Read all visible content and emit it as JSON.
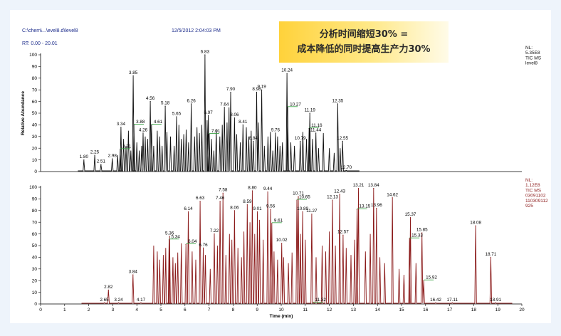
{
  "header": {
    "file_path": "C:\\chem\\...\\evel8.d\\level8",
    "datetime": "12/5/2012 2:04:03 PM",
    "rt_range": "RT: 0.00 - 20.01"
  },
  "banner": {
    "line1": "分析时间缩短30% =",
    "line2": "成本降低的同时提高生产力30%"
  },
  "colors": {
    "top_trace": "#111111",
    "bottom_trace": "#8b1a1a",
    "annotation_line": "#2e9e3a",
    "header_text": "#1a2a8a",
    "banner": "#ffd23a"
  },
  "chart_data": [
    {
      "type": "line",
      "id": "top",
      "ylabel": "Relative Abundance",
      "xlim": [
        0,
        20
      ],
      "ylim": [
        0,
        100
      ],
      "yticks": [
        "0",
        "10",
        "20",
        "30",
        "40",
        "50",
        "60",
        "70",
        "80",
        "90",
        "100"
      ],
      "info": [
        "NL:",
        "5.35E8",
        "TIC MS",
        "level8"
      ],
      "trace_start": 1.55,
      "trace_end": 13.25,
      "peaks": [
        {
          "x": 1.8,
          "y": 10,
          "label": "1.80"
        },
        {
          "x": 2.25,
          "y": 14,
          "label": "2.25"
        },
        {
          "x": 2.51,
          "y": 6,
          "label": "2.51"
        },
        {
          "x": 2.98,
          "y": 11,
          "label": "2.98"
        },
        {
          "x": 3.31,
          "y": 19,
          "label": "3.31"
        },
        {
          "x": 3.34,
          "y": 38,
          "label": "3.34"
        },
        {
          "x": 3.85,
          "y": 82,
          "label": "3.85"
        },
        {
          "x": 3.88,
          "y": 40,
          "label": "3.88"
        },
        {
          "x": 4.26,
          "y": 33,
          "label": "4.26"
        },
        {
          "x": 4.56,
          "y": 60,
          "label": "4.56"
        },
        {
          "x": 4.61,
          "y": 40,
          "label": "4.61"
        },
        {
          "x": 5.18,
          "y": 56,
          "label": "5.18"
        },
        {
          "x": 5.65,
          "y": 47,
          "label": "5.65"
        },
        {
          "x": 6.26,
          "y": 58,
          "label": "6.26"
        },
        {
          "x": 6.83,
          "y": 100,
          "label": "6.83"
        },
        {
          "x": 6.97,
          "y": 48,
          "label": "6.97"
        },
        {
          "x": 7.01,
          "y": 32,
          "label": "7.01"
        },
        {
          "x": 7.64,
          "y": 55,
          "label": "7.64"
        },
        {
          "x": 7.9,
          "y": 68,
          "label": "7.90"
        },
        {
          "x": 8.06,
          "y": 46,
          "label": "8.06"
        },
        {
          "x": 8.41,
          "y": 40,
          "label": "8.41"
        },
        {
          "x": 8.84,
          "y": 26,
          "label": "8.84"
        },
        {
          "x": 8.98,
          "y": 68,
          "label": "8.98"
        },
        {
          "x": 9.19,
          "y": 70,
          "label": "9.19"
        },
        {
          "x": 9.76,
          "y": 33,
          "label": "9.76"
        },
        {
          "x": 10.24,
          "y": 84,
          "label": "10.24"
        },
        {
          "x": 10.27,
          "y": 55,
          "label": "10.27"
        },
        {
          "x": 10.79,
          "y": 26,
          "label": "10.79"
        },
        {
          "x": 11.16,
          "y": 37,
          "label": "11.16"
        },
        {
          "x": 11.19,
          "y": 50,
          "label": "11.19"
        },
        {
          "x": 11.44,
          "y": 33,
          "label": "11.44"
        },
        {
          "x": 12.35,
          "y": 58,
          "label": "12.35"
        },
        {
          "x": 12.55,
          "y": 26,
          "label": "12.55"
        },
        {
          "x": 12.7,
          "y": 1,
          "label": "12.70"
        }
      ],
      "minor_peaks": [
        [
          3.2,
          14
        ],
        [
          3.45,
          28
        ],
        [
          3.55,
          22
        ],
        [
          3.65,
          35
        ],
        [
          3.75,
          18
        ],
        [
          4.0,
          25
        ],
        [
          4.1,
          18
        ],
        [
          4.2,
          22
        ],
        [
          4.35,
          30
        ],
        [
          4.45,
          28
        ],
        [
          4.7,
          22
        ],
        [
          4.85,
          35
        ],
        [
          4.95,
          30
        ],
        [
          5.05,
          22
        ],
        [
          5.25,
          34
        ],
        [
          5.4,
          30
        ],
        [
          5.55,
          22
        ],
        [
          5.75,
          40
        ],
        [
          5.85,
          28
        ],
        [
          5.95,
          32
        ],
        [
          6.05,
          36
        ],
        [
          6.15,
          25
        ],
        [
          6.4,
          30
        ],
        [
          6.5,
          38
        ],
        [
          6.6,
          33
        ],
        [
          6.7,
          40
        ],
        [
          6.92,
          44
        ],
        [
          7.1,
          28
        ],
        [
          7.2,
          18
        ],
        [
          7.3,
          36
        ],
        [
          7.45,
          30
        ],
        [
          7.55,
          40
        ],
        [
          7.75,
          42
        ],
        [
          7.83,
          55
        ],
        [
          8.15,
          32
        ],
        [
          8.3,
          25
        ],
        [
          8.55,
          38
        ],
        [
          8.65,
          30
        ],
        [
          8.75,
          35
        ],
        [
          9.05,
          42
        ],
        [
          9.3,
          22
        ],
        [
          9.45,
          30
        ],
        [
          9.55,
          34
        ],
        [
          9.65,
          18
        ],
        [
          9.85,
          30
        ],
        [
          9.95,
          22
        ],
        [
          10.05,
          25
        ],
        [
          10.4,
          25
        ],
        [
          10.55,
          22
        ],
        [
          10.9,
          34
        ],
        [
          11.05,
          28
        ],
        [
          11.3,
          28
        ],
        [
          11.55,
          20
        ],
        [
          11.75,
          33
        ],
        [
          12.0,
          20
        ],
        [
          12.2,
          16
        ],
        [
          12.45,
          20
        ]
      ]
    },
    {
      "type": "line",
      "id": "bottom",
      "xlabel": "Time (min)",
      "xlim": [
        0,
        20
      ],
      "ylim": [
        0,
        100
      ],
      "xticks": [
        "0",
        "1",
        "2",
        "3",
        "4",
        "5",
        "6",
        "7",
        "8",
        "9",
        "10",
        "11",
        "12",
        "13",
        "14",
        "15",
        "16",
        "17",
        "18",
        "19",
        "20"
      ],
      "yticks": [
        "0",
        "10",
        "20",
        "30",
        "40",
        "50",
        "60",
        "70",
        "80",
        "90",
        "100"
      ],
      "info": [
        "NL:",
        "1.12E8",
        "TIC MS",
        "03091102",
        "110309112",
        "925"
      ],
      "trace_start": 1.7,
      "trace_end": 19.6,
      "peaks": [
        {
          "x": 2.65,
          "y": 1,
          "label": "2.65"
        },
        {
          "x": 2.82,
          "y": 12,
          "label": "2.82"
        },
        {
          "x": 3.24,
          "y": 1,
          "label": "3.24"
        },
        {
          "x": 3.84,
          "y": 25,
          "label": "3.84"
        },
        {
          "x": 4.17,
          "y": 1,
          "label": "4.17"
        },
        {
          "x": 5.34,
          "y": 55,
          "label": "5.34"
        },
        {
          "x": 5.36,
          "y": 58,
          "label": "5.36"
        },
        {
          "x": 6.04,
          "y": 51,
          "label": "6.04"
        },
        {
          "x": 6.14,
          "y": 79,
          "label": "6.14"
        },
        {
          "x": 6.63,
          "y": 88,
          "label": "6.63"
        },
        {
          "x": 6.76,
          "y": 48,
          "label": "6.76"
        },
        {
          "x": 7.22,
          "y": 60,
          "label": "7.22"
        },
        {
          "x": 7.46,
          "y": 88,
          "label": "7.46"
        },
        {
          "x": 7.58,
          "y": 95,
          "label": "7.58"
        },
        {
          "x": 8.06,
          "y": 80,
          "label": "8.06"
        },
        {
          "x": 8.59,
          "y": 85,
          "label": "8.59"
        },
        {
          "x": 8.8,
          "y": 97,
          "label": "8.80"
        },
        {
          "x": 9.01,
          "y": 79,
          "label": "9.01"
        },
        {
          "x": 9.44,
          "y": 96,
          "label": "9.44"
        },
        {
          "x": 9.56,
          "y": 81,
          "label": "9.56"
        },
        {
          "x": 9.61,
          "y": 69,
          "label": "9.61"
        },
        {
          "x": 10.02,
          "y": 52,
          "label": "10.02"
        },
        {
          "x": 10.65,
          "y": 89,
          "label": "10.65"
        },
        {
          "x": 10.71,
          "y": 92,
          "label": "10.71"
        },
        {
          "x": 10.89,
          "y": 79,
          "label": "10.89"
        },
        {
          "x": 11.27,
          "y": 77,
          "label": "11.27"
        },
        {
          "x": 11.32,
          "y": 1,
          "label": "11.32"
        },
        {
          "x": 12.13,
          "y": 89,
          "label": "12.13"
        },
        {
          "x": 12.43,
          "y": 94,
          "label": "12.43"
        },
        {
          "x": 12.57,
          "y": 59,
          "label": "12.57"
        },
        {
          "x": 13.15,
          "y": 81,
          "label": "13.15"
        },
        {
          "x": 13.21,
          "y": 99,
          "label": "13.21"
        },
        {
          "x": 13.84,
          "y": 99,
          "label": "13.84"
        },
        {
          "x": 13.96,
          "y": 82,
          "label": "13.96"
        },
        {
          "x": 14.62,
          "y": 91,
          "label": "14.62"
        },
        {
          "x": 15.33,
          "y": 56,
          "label": "15.33"
        },
        {
          "x": 15.37,
          "y": 74,
          "label": "15.37"
        },
        {
          "x": 15.85,
          "y": 61,
          "label": "15.85"
        },
        {
          "x": 15.92,
          "y": 20,
          "label": "15.92"
        },
        {
          "x": 16.42,
          "y": 1,
          "label": "16.42"
        },
        {
          "x": 17.11,
          "y": 1,
          "label": "17.11"
        },
        {
          "x": 18.08,
          "y": 67,
          "label": "18.08"
        },
        {
          "x": 18.71,
          "y": 40,
          "label": "18.71"
        },
        {
          "x": 18.91,
          "y": 1,
          "label": "18.91"
        }
      ],
      "minor_peaks": [
        [
          4.7,
          50
        ],
        [
          4.85,
          45
        ],
        [
          4.95,
          38
        ],
        [
          5.1,
          42
        ],
        [
          5.2,
          48
        ],
        [
          5.5,
          40
        ],
        [
          5.6,
          35
        ],
        [
          5.7,
          44
        ],
        [
          5.85,
          52
        ],
        [
          6.3,
          45
        ],
        [
          6.45,
          38
        ],
        [
          6.85,
          42
        ],
        [
          7.05,
          30
        ],
        [
          7.35,
          50
        ],
        [
          7.7,
          42
        ],
        [
          7.85,
          60
        ],
        [
          7.95,
          55
        ],
        [
          8.2,
          48
        ],
        [
          8.35,
          40
        ],
        [
          8.45,
          62
        ],
        [
          8.7,
          70
        ],
        [
          8.9,
          60
        ],
        [
          9.1,
          72
        ],
        [
          9.25,
          55
        ],
        [
          9.7,
          45
        ],
        [
          9.85,
          38
        ],
        [
          10.1,
          40
        ],
        [
          10.3,
          35
        ],
        [
          10.45,
          44
        ],
        [
          10.8,
          60
        ],
        [
          11.0,
          55
        ],
        [
          11.45,
          40
        ],
        [
          11.7,
          50
        ],
        [
          11.85,
          45
        ],
        [
          12.0,
          62
        ],
        [
          12.25,
          50
        ],
        [
          12.7,
          48
        ],
        [
          12.9,
          42
        ],
        [
          13.05,
          55
        ],
        [
          13.5,
          45
        ],
        [
          13.7,
          60
        ],
        [
          14.1,
          40
        ],
        [
          14.3,
          35
        ],
        [
          14.9,
          30
        ],
        [
          15.1,
          25
        ],
        [
          15.6,
          35
        ]
      ]
    }
  ]
}
